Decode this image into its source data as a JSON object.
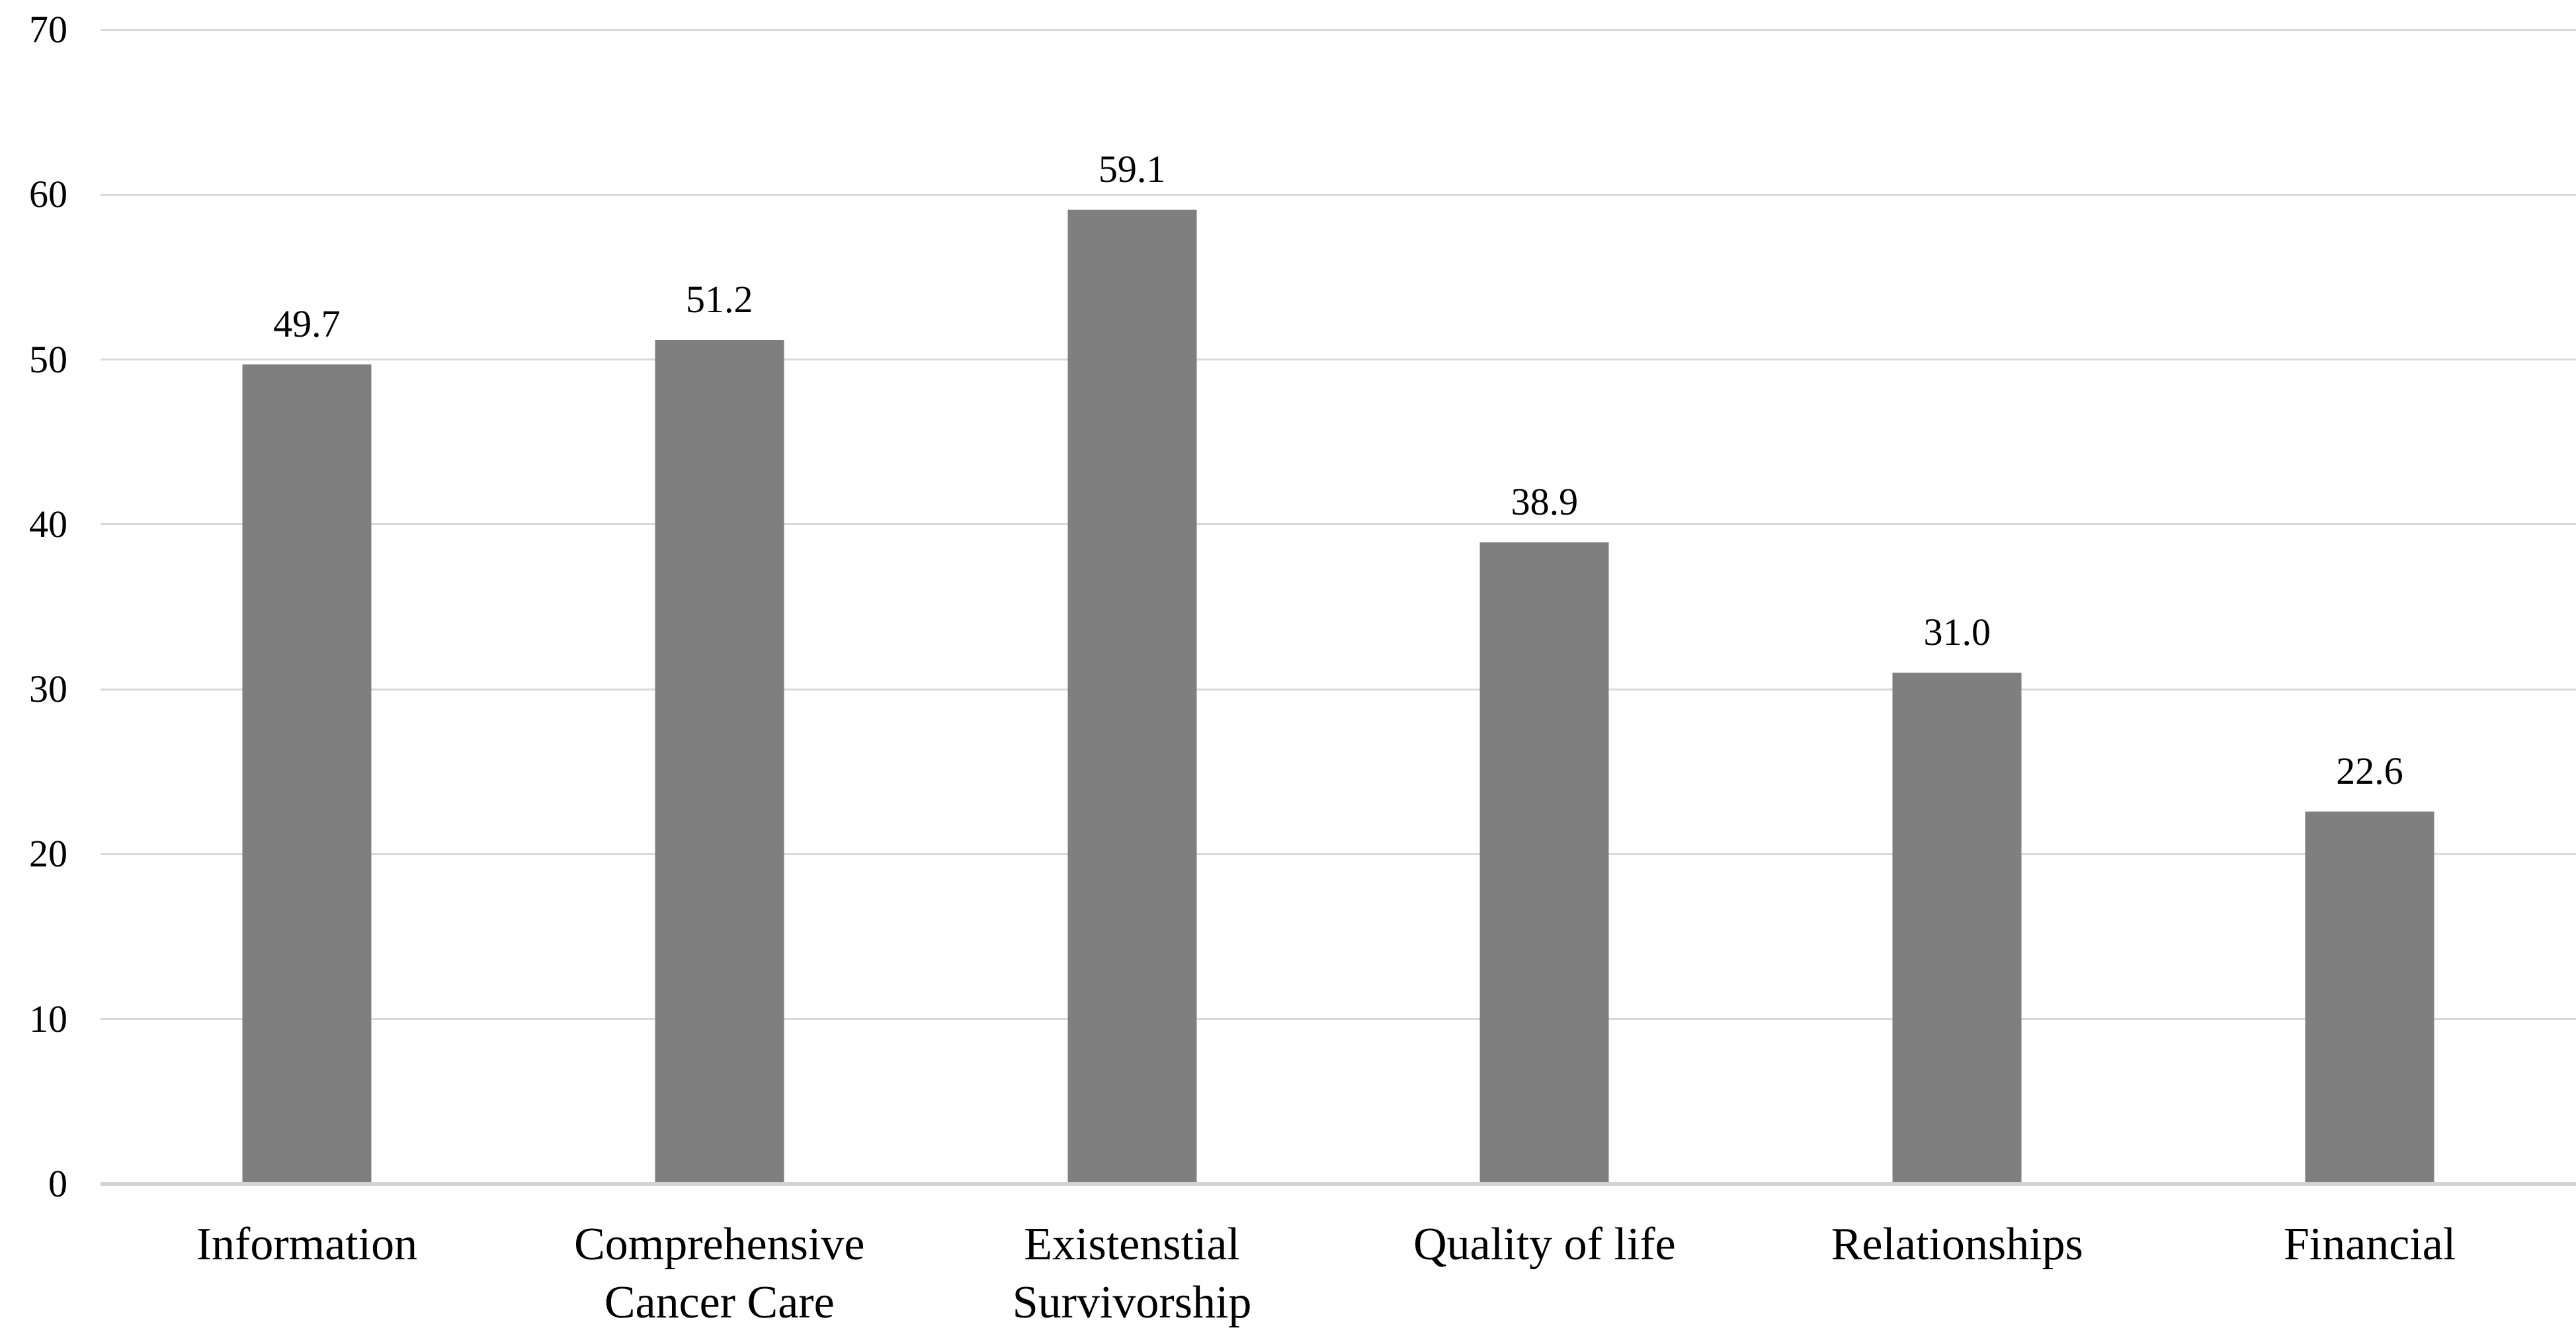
{
  "chart_data": {
    "type": "bar",
    "categories": [
      "Information",
      "Comprehensive Cancer Care",
      "Existenstial Survivorship",
      "Quality of life",
      "Relationships",
      "Financial"
    ],
    "values": [
      49.7,
      51.2,
      59.1,
      38.9,
      31.0,
      22.6
    ],
    "data_labels": [
      "49.7",
      "51.2",
      "59.1",
      "38.9",
      "31.0",
      "22.6"
    ],
    "title": "",
    "xlabel": "",
    "ylabel": "",
    "ylim": [
      0,
      70
    ],
    "yticks": [
      0,
      10,
      20,
      30,
      40,
      50,
      60,
      70
    ],
    "grid": true,
    "legend": false,
    "data_labels_shown": true,
    "colors": {
      "bar": "#7F7F7F",
      "gridline": "#D9D9D9",
      "axis_line": "#D3D3D3",
      "text": "#000000",
      "background": "#FFFFFF"
    }
  }
}
